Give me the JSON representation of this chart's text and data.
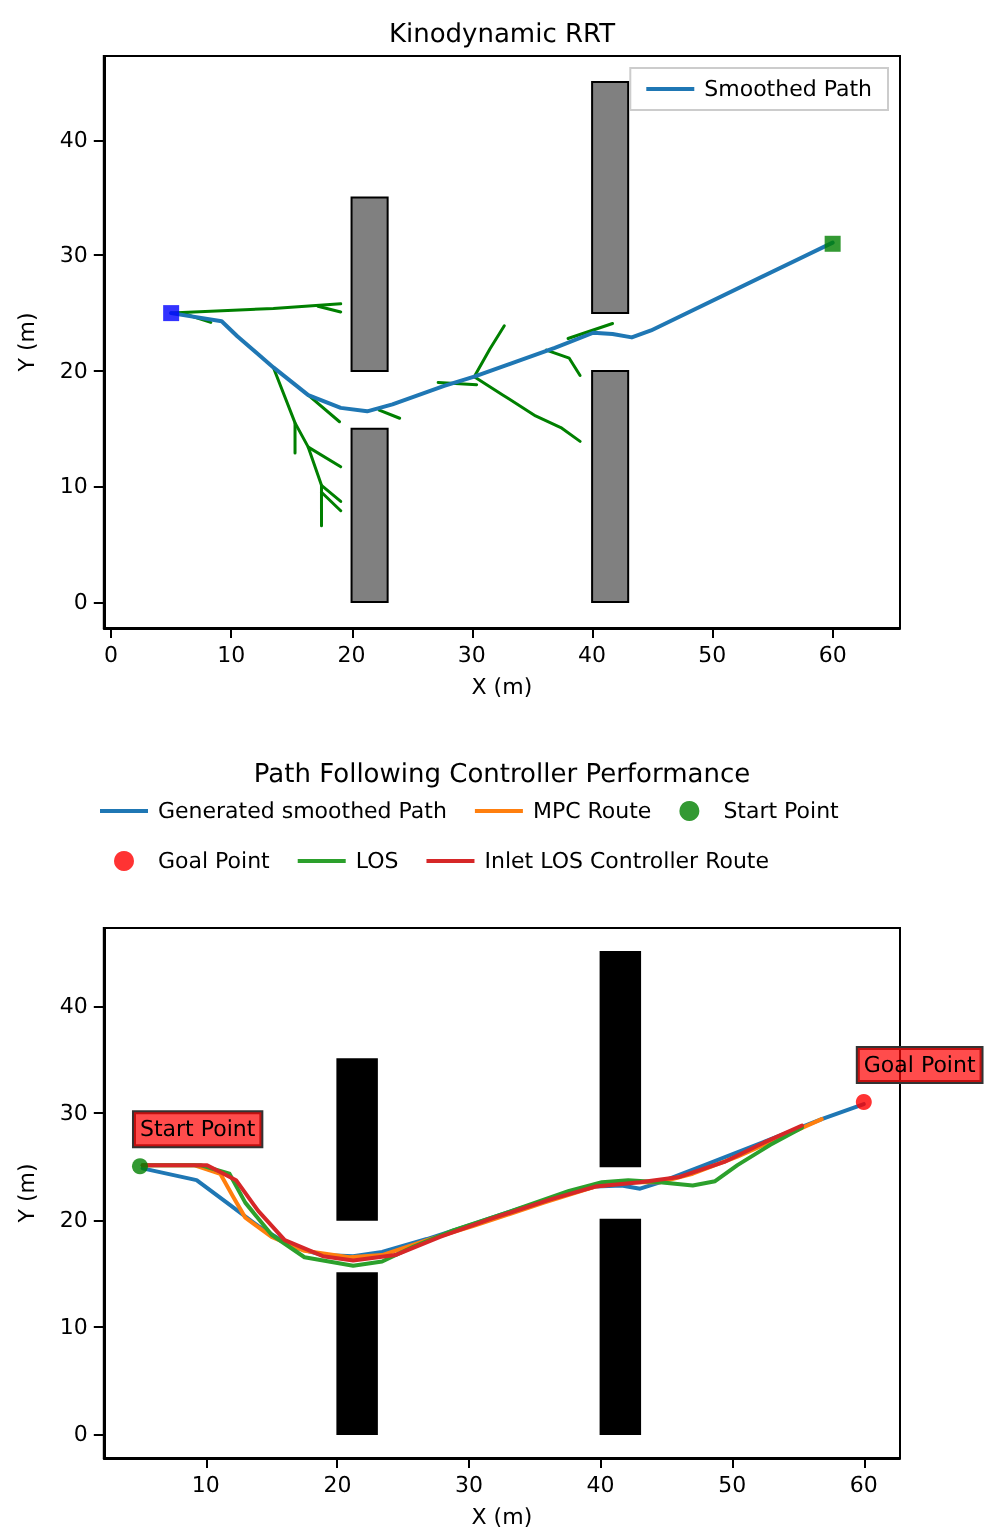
{
  "chart_data": [
    {
      "type": "line",
      "title": "Kinodynamic RRT",
      "xlabel": "X (m)",
      "ylabel": "Y (m)",
      "xlim": [
        -0.6,
        65.6
      ],
      "ylim": [
        -2.25,
        47.25
      ],
      "xticks": [
        0,
        10,
        20,
        30,
        40,
        50,
        60
      ],
      "yticks": [
        0,
        10,
        20,
        30,
        40
      ],
      "legend": "top right",
      "grid": false,
      "series": [
        {
          "type": "bar",
          "color": "#808080",
          "x": [
            21.5,
            41.5
          ],
          "base": [
            0,
            0
          ],
          "values": [
            15,
            20
          ]
        },
        {
          "type": "bar",
          "color": "#808080",
          "x": [
            21.5,
            41.5
          ],
          "base": [
            20,
            25
          ],
          "values": [
            15,
            20
          ]
        },
        {
          "color": "#008000",
          "x": [
            5,
            13.5,
            19.1
          ],
          "values": [
            25,
            25.4,
            25.8
          ]
        },
        {
          "color": "#008000",
          "x": [
            17.2,
            19.1
          ],
          "values": [
            25.6,
            25.1
          ]
        },
        {
          "color": "#008000",
          "x": [
            6.2,
            8.3
          ],
          "values": [
            24.9,
            24.2
          ]
        },
        {
          "color": "#008000",
          "x": [
            13.5,
            15.3,
            16.4,
            17.5,
            17.5
          ],
          "values": [
            20.3,
            15.5,
            13.4,
            10.1,
            6.6
          ]
        },
        {
          "color": "#008000",
          "x": [
            15.3,
            15.3
          ],
          "values": [
            15.5,
            12.9
          ]
        },
        {
          "color": "#008000",
          "x": [
            16.4,
            19.1
          ],
          "values": [
            13.4,
            11.7
          ]
        },
        {
          "color": "#008000",
          "x": [
            17.5,
            19.1
          ],
          "values": [
            10.1,
            8.7
          ]
        },
        {
          "color": "#008000",
          "x": [
            17.5,
            19.1
          ],
          "values": [
            9.5,
            7.9
          ]
        },
        {
          "color": "#008000",
          "x": [
            16.4,
            19.0
          ],
          "values": [
            17.9,
            15.6
          ]
        },
        {
          "color": "#008000",
          "x": [
            22.3,
            24.0
          ],
          "values": [
            16.6,
            15.9
          ]
        },
        {
          "color": "#008000",
          "x": [
            30.2,
            31.5,
            32.7
          ],
          "values": [
            19.5,
            21.9,
            23.9
          ]
        },
        {
          "color": "#008000",
          "x": [
            30.2,
            32.6,
            35.3,
            37.4,
            39.0
          ],
          "values": [
            19.5,
            17.9,
            16.1,
            15.1,
            13.9
          ]
        },
        {
          "color": "#008000",
          "x": [
            36.2,
            38.1,
            39.0
          ],
          "values": [
            21.8,
            21.1,
            19.6
          ]
        },
        {
          "color": "#008000",
          "x": [
            38.0,
            41.7
          ],
          "values": [
            22.8,
            24.1
          ]
        },
        {
          "color": "#008000",
          "x": [
            27.2,
            30.4
          ],
          "values": [
            19.0,
            18.8
          ]
        },
        {
          "name": "Smoothed Path",
          "color": "#1f77b4",
          "x": [
            5,
            9.2,
            10.5,
            13.5,
            16.4,
            19.1,
            21.3,
            23.4,
            27.7,
            30.2,
            33.7,
            36.9,
            40.1,
            41.7,
            43.3,
            44.9,
            60
          ],
          "values": [
            25,
            24.3,
            23.0,
            20.3,
            17.9,
            16.8,
            16.5,
            17.1,
            18.7,
            19.5,
            20.8,
            22.0,
            23.3,
            23.2,
            22.9,
            23.5,
            31.1
          ]
        },
        {
          "type": "scatter",
          "marker": "square",
          "color": "#0000ff",
          "x": [
            5
          ],
          "values": [
            25
          ]
        },
        {
          "type": "scatter",
          "marker": "square",
          "color": "#008000",
          "x": [
            60
          ],
          "values": [
            31
          ]
        }
      ]
    },
    {
      "type": "line",
      "title": "Path Following Controller Performance",
      "xlabel": "X (m)",
      "ylabel": "Y (m)",
      "xlim": [
        2.25,
        62.75
      ],
      "ylim": [
        -2.25,
        47.25
      ],
      "xticks": [
        10,
        20,
        30,
        40,
        50,
        60
      ],
      "yticks": [
        0,
        10,
        20,
        30,
        40
      ],
      "legend": "top",
      "grid": false,
      "annotations": [
        {
          "text": "Start Point",
          "x": 5,
          "y": 25
        },
        {
          "text": "Goal Point",
          "x": 60,
          "y": 31
        }
      ],
      "series": [
        {
          "type": "bar",
          "color": "#000000",
          "x": [
            21.5,
            41.5
          ],
          "base": [
            0,
            0
          ],
          "values": [
            15,
            20
          ]
        },
        {
          "type": "bar",
          "color": "#000000",
          "x": [
            21.5,
            41.5
          ],
          "base": [
            20,
            25
          ],
          "values": [
            15,
            20
          ]
        },
        {
          "name": "Generated smoothed Path",
          "color": "#1f77b4",
          "x": [
            5.2,
            9.3,
            11.6,
            14.0,
            16.5,
            18.9,
            21.2,
            23.4,
            26.8,
            30.3,
            33.7,
            37.1,
            39.6,
            41.6,
            43.0,
            44.5,
            47.9,
            52.9,
            56.8,
            60
          ],
          "values": [
            24.8,
            23.7,
            21.6,
            19.4,
            17.5,
            16.7,
            16.6,
            17.0,
            18.2,
            19.6,
            21.0,
            22.3,
            23.1,
            23.2,
            22.9,
            23.5,
            25.1,
            27.5,
            29.4,
            30.8
          ]
        },
        {
          "name": "MPC Route",
          "color": "#ff7f0e",
          "x": [
            5.2,
            9.1,
            11.1,
            12.1,
            13.0,
            15.0,
            17.5,
            20.9,
            23.4,
            26.8,
            30.3,
            35.7,
            39.6,
            42.1,
            44.5,
            47.0,
            50.4,
            53.9,
            56.8
          ],
          "values": [
            25.1,
            25.1,
            24.3,
            22.1,
            20.2,
            18.4,
            17.1,
            16.5,
            16.7,
            18.1,
            19.4,
            21.6,
            23.1,
            23.5,
            23.5,
            24.3,
            25.9,
            27.8,
            29.4
          ]
        },
        {
          "type": "scatter",
          "name": "Start Point",
          "marker": "circle",
          "color": "#008000",
          "x": [
            5
          ],
          "values": [
            25
          ]
        },
        {
          "type": "scatter",
          "name": "Goal Point",
          "marker": "circle",
          "color": "#ff0000",
          "x": [
            60
          ],
          "values": [
            31
          ]
        },
        {
          "name": "LOS",
          "color": "#2ca02c",
          "x": [
            5.2,
            9.6,
            11.8,
            13.0,
            15.0,
            17.5,
            21.2,
            23.4,
            25.8,
            28.8,
            33.2,
            37.6,
            40.1,
            42.1,
            44.5,
            47.0,
            48.7,
            50.4,
            52.9,
            55.3
          ],
          "values": [
            25.1,
            25.1,
            24.3,
            21.6,
            18.6,
            16.5,
            15.7,
            16.1,
            17.5,
            19.0,
            20.8,
            22.7,
            23.5,
            23.7,
            23.5,
            23.2,
            23.6,
            25.1,
            27.0,
            28.6
          ]
        },
        {
          "name": "Inlet LOS Controller Route",
          "color": "#d62728",
          "x": [
            5.2,
            10.1,
            12.3,
            14.0,
            16.0,
            18.9,
            21.2,
            24.4,
            27.8,
            31.7,
            36.2,
            39.6,
            43.0,
            46.0,
            49.4,
            52.4,
            55.3
          ],
          "values": [
            25.1,
            25.1,
            23.7,
            20.8,
            18.1,
            16.6,
            16.2,
            16.7,
            18.4,
            20.1,
            21.9,
            23.1,
            23.5,
            24.0,
            25.4,
            27.2,
            28.8
          ]
        }
      ]
    }
  ]
}
